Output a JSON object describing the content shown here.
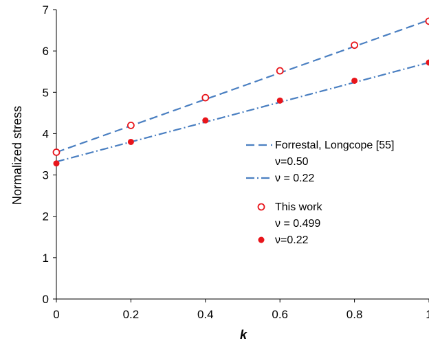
{
  "chart_data": {
    "type": "line",
    "xlabel": "k",
    "ylabel": "Normalized stress",
    "xlim": [
      0,
      1
    ],
    "ylim": [
      0,
      7
    ],
    "xticks": [
      "0",
      "0.2",
      "0.4",
      "0.6",
      "0.8",
      "1"
    ],
    "yticks": [
      "0",
      "1",
      "2",
      "3",
      "4",
      "5",
      "6",
      "7"
    ],
    "grid": false,
    "legend_position": "right",
    "series": [
      {
        "name": "Forrestal, Longcope [55]",
        "name_line2": "ν=0.50",
        "kind": "line",
        "style": "dashed",
        "color": "#4a7fc1",
        "x": [
          0,
          1
        ],
        "y": [
          3.55,
          6.75
        ]
      },
      {
        "name": "ν = 0.22",
        "kind": "line",
        "style": "dash-dot",
        "color": "#4a7fc1",
        "x": [
          0,
          1
        ],
        "y": [
          3.32,
          5.72
        ]
      },
      {
        "name": "This work",
        "name_line2": "ν = 0.499",
        "kind": "scatter",
        "marker": "open-circle",
        "color": "#e8151b",
        "x": [
          0,
          0.2,
          0.4,
          0.6,
          0.8,
          1
        ],
        "y": [
          3.55,
          4.2,
          4.87,
          5.52,
          6.14,
          6.72
        ]
      },
      {
        "name": "ν=0.22",
        "kind": "scatter",
        "marker": "filled-circle",
        "color": "#e8151b",
        "x": [
          0,
          0.2,
          0.4,
          0.6,
          0.8,
          1
        ],
        "y": [
          3.28,
          3.8,
          4.32,
          4.8,
          5.28,
          5.72
        ]
      }
    ]
  }
}
